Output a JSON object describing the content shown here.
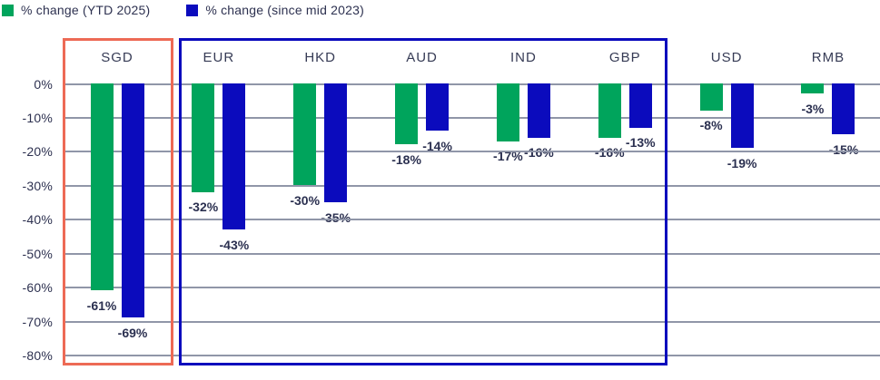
{
  "legend": [
    {
      "label": "% change (YTD 2025)",
      "color": "#00a45c"
    },
    {
      "label": "% change (since mid 2023)",
      "color": "#0b0bbd"
    }
  ],
  "chart_data": {
    "type": "bar",
    "categories": [
      "SGD",
      "EUR",
      "HKD",
      "AUD",
      "IND",
      "GBP",
      "USD",
      "RMB"
    ],
    "series": [
      {
        "name": "% change (YTD 2025)",
        "color": "#00a45c",
        "values": [
          -61,
          -32,
          -30,
          -18,
          -17,
          -16,
          -8,
          -3
        ],
        "labels": [
          "-61%",
          "-32%",
          "-30%",
          "-18%",
          "-17%",
          "-16%",
          "-8%",
          "-3%"
        ]
      },
      {
        "name": "% change (since mid 2023)",
        "color": "#0b0bbd",
        "values": [
          -69,
          -43,
          -35,
          -14,
          -16,
          -13,
          -19,
          -15
        ],
        "labels": [
          "-69%",
          "-43%",
          "-35%",
          "-14%",
          "-16%",
          "-13%",
          "-19%",
          "-15%"
        ]
      }
    ],
    "y_ticks": [
      "0%",
      "-10%",
      "-20%",
      "-30%",
      "-40%",
      "-50%",
      "-60%",
      "-70%",
      "-80%"
    ],
    "y_tick_values": [
      0,
      -10,
      -20,
      -30,
      -40,
      -50,
      -60,
      -70,
      -80
    ],
    "ylim": [
      -80,
      0
    ],
    "grid": "horizontal",
    "legend_position": "top-left",
    "category_label_position": "top",
    "annotations": [
      {
        "name": "highlight-box-sgd",
        "type": "box",
        "color": "#ed6a55",
        "categories": [
          "SGD"
        ]
      },
      {
        "name": "highlight-box-eur-to-gbp",
        "type": "box",
        "color": "#0b0bbd",
        "categories": [
          "EUR",
          "HKD",
          "AUD",
          "IND",
          "GBP"
        ]
      }
    ],
    "colors": {
      "gridline": "#9096a8",
      "tick_text": "#2d3150",
      "category_text": "#363b55",
      "value_text": "#2b3050",
      "background": "#ffffff"
    }
  }
}
